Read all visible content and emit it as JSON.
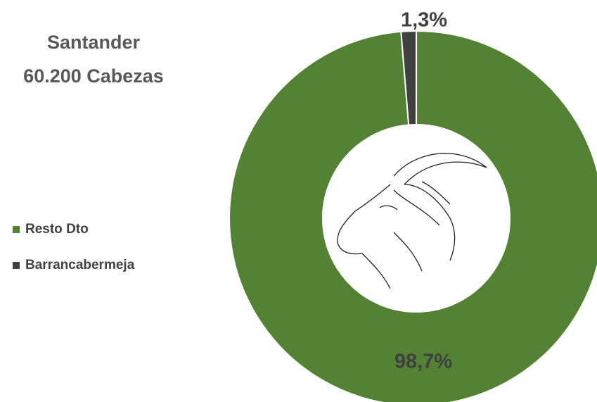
{
  "chart_data": {
    "type": "donut",
    "title": "Santander",
    "subtitle": "60.200 Cabezas",
    "categories": [
      "Resto Dto",
      "Barrancabermeja"
    ],
    "values": [
      98.7,
      1.3
    ],
    "value_labels": [
      "98,7%",
      "1,3%"
    ],
    "colors": [
      "#548235",
      "#404040"
    ],
    "legend": "left"
  }
}
